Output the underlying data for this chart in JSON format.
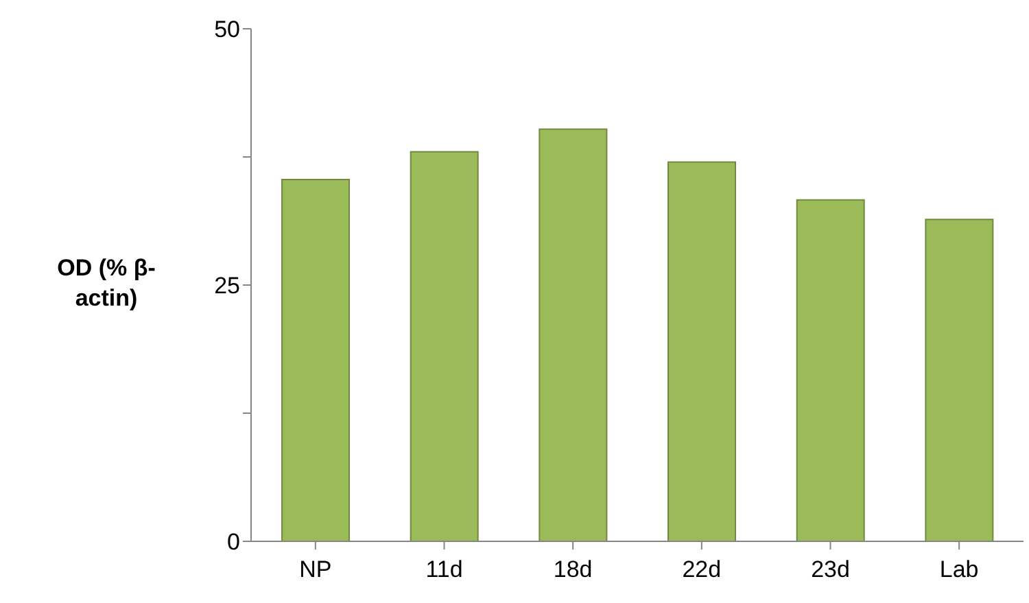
{
  "chart_data": {
    "type": "bar",
    "ylabel": "OD (% β-actin)",
    "categories": [
      "NP",
      "11d",
      "18d",
      "22d",
      "23d",
      "Lab"
    ],
    "values": [
      35.3,
      38.0,
      40.2,
      37.0,
      33.3,
      31.4
    ],
    "color": "#9bbb59",
    "ylim": [
      0,
      50
    ],
    "yticks": [
      0,
      {
        "value": 12.5,
        "label": null
      },
      25,
      {
        "value": 37.5,
        "label": null
      },
      50
    ],
    "grid": false,
    "legend": false
  }
}
